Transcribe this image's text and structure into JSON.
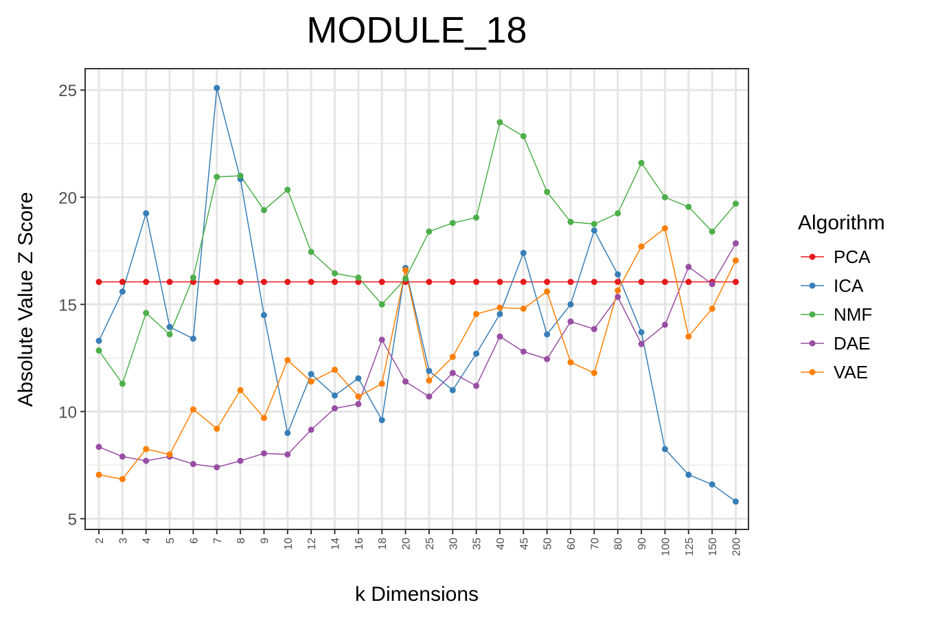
{
  "chart_data": {
    "type": "line",
    "title": "MODULE_18",
    "xlabel": "k Dimensions",
    "ylabel": "Absolute Value Z Score",
    "categories": [
      "2",
      "3",
      "4",
      "5",
      "6",
      "7",
      "8",
      "9",
      "10",
      "12",
      "14",
      "16",
      "18",
      "20",
      "25",
      "30",
      "35",
      "40",
      "45",
      "50",
      "60",
      "70",
      "80",
      "90",
      "100",
      "125",
      "150",
      "200"
    ],
    "y_ticks": [
      5,
      10,
      15,
      20,
      25
    ],
    "ylim": [
      4.5,
      26
    ],
    "grid": true,
    "legend_title": "Algorithm",
    "legend_position": "right",
    "series": [
      {
        "name": "PCA",
        "color": "#e41a1c",
        "values": [
          16.05,
          16.05,
          16.05,
          16.05,
          16.05,
          16.05,
          16.05,
          16.05,
          16.05,
          16.05,
          16.05,
          16.05,
          16.05,
          16.05,
          16.05,
          16.05,
          16.05,
          16.05,
          16.05,
          16.05,
          16.05,
          16.05,
          16.05,
          16.05,
          16.05,
          16.05,
          16.05,
          16.05
        ]
      },
      {
        "name": "ICA",
        "color": "#377eb8",
        "values": [
          13.3,
          15.6,
          19.25,
          13.95,
          13.4,
          25.1,
          20.85,
          14.5,
          9.0,
          11.75,
          10.75,
          11.55,
          9.6,
          16.7,
          11.9,
          11.0,
          12.7,
          14.55,
          17.4,
          13.6,
          15.0,
          18.45,
          16.4,
          13.7,
          8.25,
          7.05,
          6.6,
          5.8
        ]
      },
      {
        "name": "NMF",
        "color": "#4daf4a",
        "values": [
          12.85,
          11.3,
          14.6,
          13.6,
          16.25,
          20.95,
          21.0,
          19.4,
          20.35,
          17.45,
          16.45,
          16.25,
          15.0,
          16.2,
          18.4,
          18.8,
          19.05,
          23.5,
          22.85,
          20.25,
          18.85,
          18.75,
          19.25,
          21.6,
          20.0,
          19.55,
          18.4,
          19.7
        ]
      },
      {
        "name": "DAE",
        "color": "#984ea3",
        "values": [
          8.35,
          7.9,
          7.7,
          7.9,
          7.55,
          7.4,
          7.7,
          8.05,
          8.0,
          9.15,
          10.15,
          10.35,
          13.35,
          11.4,
          10.7,
          11.8,
          11.2,
          13.5,
          12.8,
          12.45,
          14.2,
          13.85,
          15.35,
          13.15,
          14.05,
          16.75,
          15.95,
          17.85
        ]
      },
      {
        "name": "VAE",
        "color": "#ff7f00",
        "values": [
          7.05,
          6.85,
          8.25,
          8.0,
          10.1,
          9.2,
          11.0,
          9.7,
          12.4,
          11.4,
          11.95,
          10.7,
          11.3,
          16.6,
          11.45,
          12.55,
          14.55,
          14.85,
          14.8,
          15.6,
          12.3,
          11.8,
          15.65,
          17.7,
          18.55,
          13.5,
          14.8,
          17.05
        ]
      }
    ]
  }
}
